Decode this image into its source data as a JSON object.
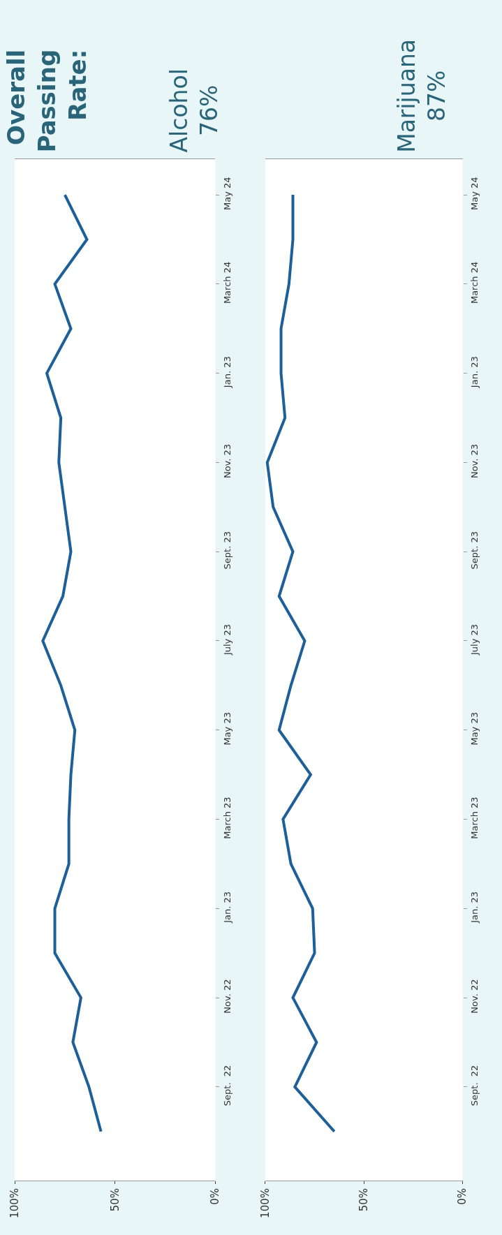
{
  "chart_data": [
    {
      "type": "line",
      "orientation": "horizontal",
      "annotations": [
        "Overall\nPassing\nRate:",
        "Alcohol\n76%"
      ],
      "categories": [
        "May 24",
        null,
        "March 24",
        null,
        "Jan. 23",
        null,
        "Nov. 23",
        null,
        "Sept. 23",
        null,
        "July 23",
        null,
        "May 23",
        null,
        "March 23",
        null,
        "Jan. 23",
        null,
        "Nov. 22",
        null,
        "Sept.  22",
        null
      ],
      "series": [
        {
          "color": "#1c5f99",
          "values": [
            75,
            64,
            80,
            72,
            84,
            77,
            78,
            75,
            72,
            76,
            86,
            77,
            70,
            72,
            73,
            73,
            80,
            80,
            67,
            71,
            63,
            57
          ]
        }
      ],
      "xlim": [
        100,
        0
      ],
      "xticks": [
        {
          "value": 100,
          "label": "100%"
        },
        {
          "value": 50,
          "label": "50%"
        },
        {
          "value": 0,
          "label": "0%"
        }
      ],
      "grid": false,
      "line_style": "solid"
    },
    {
      "type": "line",
      "orientation": "horizontal",
      "annotations": [
        "Marijuana\n87%"
      ],
      "categories": [
        "May 24",
        null,
        "March 24",
        null,
        "Jan. 23",
        null,
        "Nov. 23",
        null,
        "Sept. 23",
        null,
        "July 23",
        null,
        "May 23",
        null,
        "March 23",
        null,
        "Jan. 23",
        null,
        "Nov. 22",
        null,
        "Sept.  22",
        null
      ],
      "series": [
        {
          "color": "#1c5f99",
          "values": [
            86,
            86,
            88,
            92,
            92,
            90,
            99,
            96,
            86,
            93,
            80,
            87,
            93,
            77,
            91,
            87,
            76,
            75,
            86,
            74,
            85,
            65
          ]
        }
      ],
      "xlim": [
        100,
        0
      ],
      "xticks": [
        {
          "value": 100,
          "label": "100%"
        },
        {
          "value": 50,
          "label": "50%"
        },
        {
          "value": 0,
          "label": "0%"
        }
      ],
      "grid": false,
      "line_style": "solid"
    }
  ]
}
